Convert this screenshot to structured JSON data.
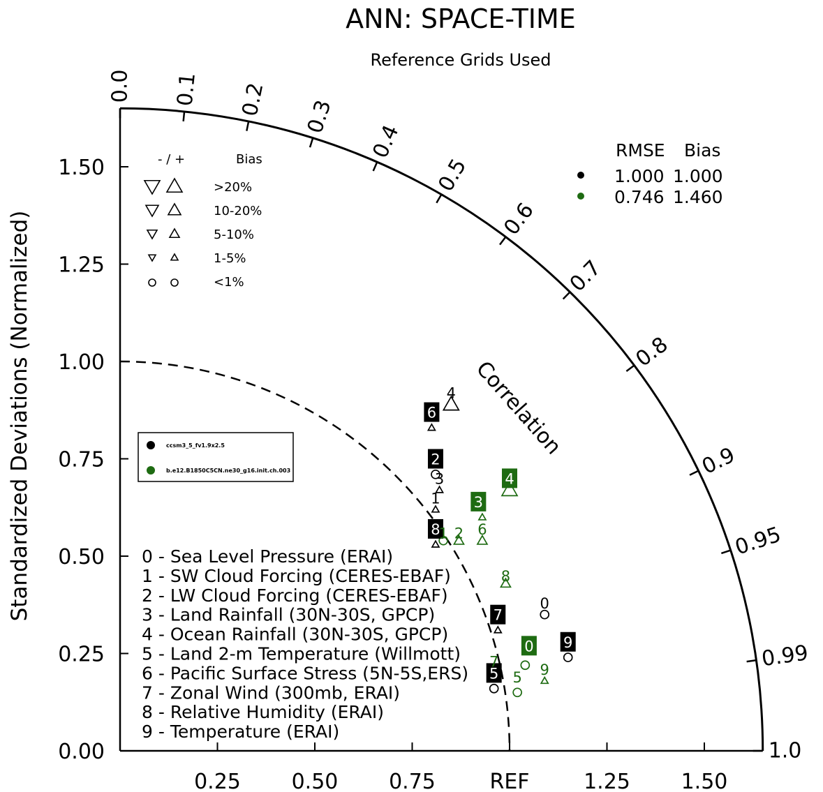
{
  "chart_data": {
    "type": "taylor",
    "title": "ANN: SPACE-TIME",
    "subtitle": "Reference Grids Used",
    "ylabel": "Standardized Deviations (Normalized)",
    "radial_label": "Correlation",
    "xlim": [
      0,
      1.65
    ],
    "ylim": [
      0,
      1.65
    ],
    "x_tick_labels": [
      {
        "value": 0.25,
        "label": "0.25"
      },
      {
        "value": 0.5,
        "label": "0.50"
      },
      {
        "value": 0.75,
        "label": "0.75"
      },
      {
        "value": 1.0,
        "label": "REF"
      },
      {
        "value": 1.25,
        "label": "1.25"
      },
      {
        "value": 1.5,
        "label": "1.50"
      }
    ],
    "y_tick_labels": [
      {
        "value": 0.0,
        "label": "0.00"
      },
      {
        "value": 0.25,
        "label": "0.25"
      },
      {
        "value": 0.5,
        "label": "0.50"
      },
      {
        "value": 0.75,
        "label": "0.75"
      },
      {
        "value": 1.0,
        "label": "1.00"
      },
      {
        "value": 1.25,
        "label": "1.25"
      },
      {
        "value": 1.5,
        "label": "1.50"
      }
    ],
    "correlation_ticks": [
      {
        "value": 0.0,
        "label": "0.0"
      },
      {
        "value": 0.1,
        "label": "0.1"
      },
      {
        "value": 0.2,
        "label": "0.2"
      },
      {
        "value": 0.3,
        "label": "0.3"
      },
      {
        "value": 0.4,
        "label": "0.4"
      },
      {
        "value": 0.5,
        "label": "0.5"
      },
      {
        "value": 0.6,
        "label": "0.6"
      },
      {
        "value": 0.7,
        "label": "0.7"
      },
      {
        "value": 0.8,
        "label": "0.8"
      },
      {
        "value": 0.9,
        "label": "0.9"
      },
      {
        "value": 0.95,
        "label": "0.95"
      },
      {
        "value": 0.99,
        "label": "0.99"
      },
      {
        "value": 1.0,
        "label": "1.0"
      }
    ],
    "reference_arc_radius": 1.0,
    "variables": [
      "0 - Sea Level Pressure (ERAI)",
      "1 - SW Cloud Forcing (CERES-EBAF)",
      "2 - LW Cloud Forcing (CERES-EBAF)",
      "3 - Land Rainfall (30N-30S, GPCP)",
      "4 - Ocean Rainfall (30N-30S, GPCP)",
      "5 - Land 2-m Temperature (Willmott)",
      "6 - Pacific Surface Stress (5N-5S,ERS)",
      "7 - Zonal Wind (300mb, ERAI)",
      "8 - Relative Humidity (ERAI)",
      "9 - Temperature (ERAI)"
    ],
    "bias_key": {
      "header": "-  /  +",
      "header_bias": "Bias",
      "rows": [
        {
          "label": ">20%",
          "size": 11
        },
        {
          "label": "10-20%",
          "size": 9
        },
        {
          "label": "5-10%",
          "size": 7
        },
        {
          "label": "1-5%",
          "size": 5
        },
        {
          "label": "<1%",
          "size": 0
        }
      ]
    },
    "rmse_key": {
      "header_rmse": "RMSE",
      "header_bias": "Bias",
      "rows": [
        {
          "color": "#000000",
          "rmse": "1.000",
          "bias": "1.000"
        },
        {
          "color": "#1e6b12",
          "rmse": "0.746",
          "bias": "1.460"
        }
      ]
    },
    "series": [
      {
        "name": "ccsm3_5_fv1.9x2.5",
        "color": "#000000",
        "points": [
          {
            "id": "0",
            "x": 1.09,
            "y": 0.35,
            "marker": "circle",
            "size": 0
          },
          {
            "id": "1",
            "x": 0.81,
            "y": 0.62,
            "marker": "up",
            "size": 5
          },
          {
            "id": "2",
            "x": 0.81,
            "y": 0.71,
            "marker": "circle",
            "size": 0
          },
          {
            "id": "3",
            "x": 0.82,
            "y": 0.67,
            "marker": "up",
            "size": 5
          },
          {
            "id": "4",
            "x": 0.85,
            "y": 0.89,
            "marker": "up",
            "size": 11
          },
          {
            "id": "5",
            "x": 0.96,
            "y": 0.16,
            "marker": "circle",
            "size": 0
          },
          {
            "id": "6",
            "x": 0.8,
            "y": 0.83,
            "marker": "up",
            "size": 5
          },
          {
            "id": "7",
            "x": 0.97,
            "y": 0.31,
            "marker": "up",
            "size": 5
          },
          {
            "id": "8",
            "x": 0.81,
            "y": 0.53,
            "marker": "up",
            "size": 5
          },
          {
            "id": "9",
            "x": 1.15,
            "y": 0.24,
            "marker": "circle",
            "size": 0
          }
        ]
      },
      {
        "name": "b.e12.B1850C5CN.ne30_g16.init.ch.003",
        "color": "#1e6b12",
        "points": [
          {
            "id": "0",
            "x": 1.04,
            "y": 0.22,
            "marker": "circle",
            "size": 0
          },
          {
            "id": "1",
            "x": 0.83,
            "y": 0.54,
            "marker": "circle",
            "size": 0
          },
          {
            "id": "2",
            "x": 0.87,
            "y": 0.54,
            "marker": "up",
            "size": 7
          },
          {
            "id": "3",
            "x": 0.93,
            "y": 0.6,
            "marker": "up",
            "size": 5
          },
          {
            "id": "4",
            "x": 1.0,
            "y": 0.67,
            "marker": "up",
            "size": 11
          },
          {
            "id": "5",
            "x": 1.02,
            "y": 0.15,
            "marker": "circle",
            "size": 0
          },
          {
            "id": "6",
            "x": 0.93,
            "y": 0.54,
            "marker": "up",
            "size": 7
          },
          {
            "id": "7",
            "x": 0.96,
            "y": 0.2,
            "marker": "circle",
            "size": 0
          },
          {
            "id": "8",
            "x": 0.99,
            "y": 0.43,
            "marker": "up",
            "size": 7
          },
          {
            "id": "9",
            "x": 1.09,
            "y": 0.18,
            "marker": "up",
            "size": 5
          }
        ],
        "labelled": [
          {
            "id": "0",
            "x": 1.05,
            "y": 0.27,
            "boxed": true
          },
          {
            "id": "1",
            "x": 0.83,
            "y": 0.56,
            "boxed": false
          },
          {
            "id": "2",
            "x": 0.87,
            "y": 0.56,
            "boxed": false
          },
          {
            "id": "3",
            "x": 0.92,
            "y": 0.64,
            "boxed": true
          },
          {
            "id": "4",
            "x": 1.0,
            "y": 0.7,
            "boxed": true
          },
          {
            "id": "5",
            "x": 1.02,
            "y": 0.19,
            "boxed": false
          },
          {
            "id": "6",
            "x": 0.93,
            "y": 0.57,
            "boxed": false
          },
          {
            "id": "7",
            "x": 0.96,
            "y": 0.23,
            "boxed": false
          },
          {
            "id": "8",
            "x": 0.99,
            "y": 0.45,
            "boxed": false
          },
          {
            "id": "9",
            "x": 1.09,
            "y": 0.21,
            "boxed": false
          }
        ]
      }
    ],
    "black_labels": [
      {
        "id": "0",
        "x": 1.09,
        "y": 0.38,
        "boxed": false
      },
      {
        "id": "1",
        "x": 0.81,
        "y": 0.65,
        "boxed": false
      },
      {
        "id": "2",
        "x": 0.81,
        "y": 0.75,
        "boxed": true
      },
      {
        "id": "3",
        "x": 0.82,
        "y": 0.7,
        "boxed": false
      },
      {
        "id": "4",
        "x": 0.85,
        "y": 0.92,
        "boxed": false
      },
      {
        "id": "5",
        "x": 0.96,
        "y": 0.2,
        "boxed": true
      },
      {
        "id": "6",
        "x": 0.8,
        "y": 0.87,
        "boxed": true
      },
      {
        "id": "7",
        "x": 0.97,
        "y": 0.35,
        "boxed": true
      },
      {
        "id": "8",
        "x": 0.81,
        "y": 0.57,
        "boxed": true
      },
      {
        "id": "9",
        "x": 1.15,
        "y": 0.28,
        "boxed": true
      }
    ],
    "case_legend": [
      {
        "name": "ccsm3_5_fv1.9x2.5",
        "color": "#000000"
      },
      {
        "name": "b.e12.B1850C5CN.ne30_g16.init.ch.003",
        "color": "#1e6b12"
      }
    ]
  }
}
